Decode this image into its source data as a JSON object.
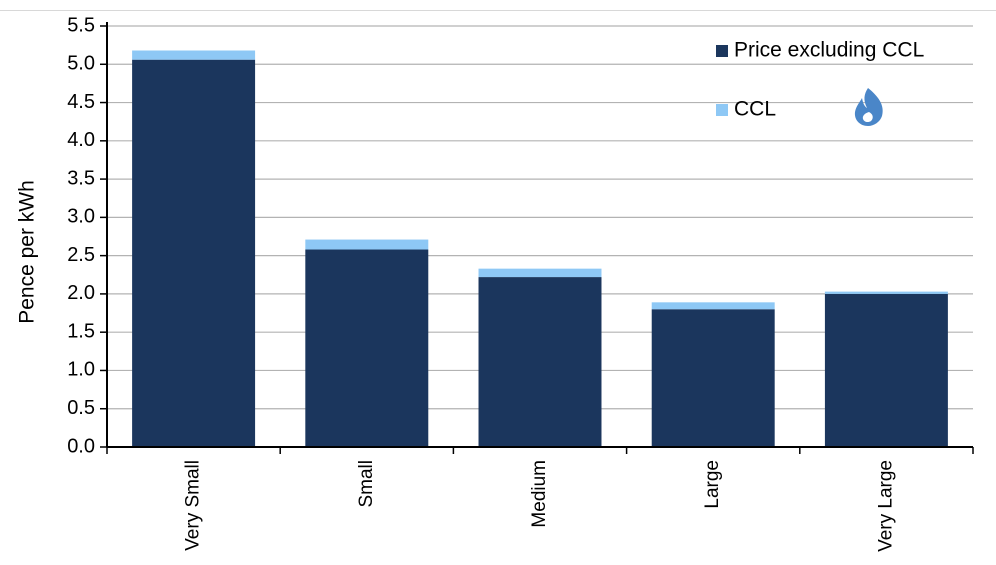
{
  "chart_data": {
    "type": "bar",
    "stacked": true,
    "categories": [
      "Very Small",
      "Small",
      "Medium",
      "Large",
      "Very Large"
    ],
    "series": [
      {
        "name": "Price excluding CCL",
        "color": "#1b365d",
        "values": [
          5.06,
          2.58,
          2.22,
          1.8,
          2.0
        ]
      },
      {
        "name": "CCL",
        "color": "#8ec8f5",
        "values": [
          0.12,
          0.13,
          0.11,
          0.09,
          0.03
        ]
      }
    ],
    "ylabel": "Pence per kWh",
    "ylim": [
      0,
      5.5
    ],
    "yticks": [
      "0.0",
      "0.5",
      "1.0",
      "1.5",
      "2.0",
      "2.5",
      "3.0",
      "3.5",
      "4.0",
      "4.5",
      "5.0",
      "5.5"
    ],
    "grid": true,
    "legend": "top-right",
    "logo_icon": "gas-flame-icon",
    "logo_color": "#4a86c8"
  }
}
